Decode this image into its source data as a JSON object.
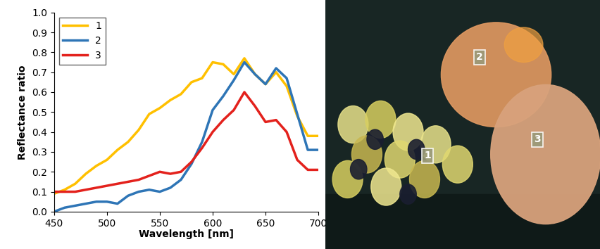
{
  "chart_data": {
    "type": "line",
    "x_label": "Wavelength [nm]",
    "y_label": "Reflectance ratio",
    "x": [
      450,
      460,
      470,
      480,
      490,
      500,
      510,
      520,
      530,
      540,
      550,
      560,
      570,
      580,
      590,
      600,
      610,
      620,
      630,
      640,
      650,
      660,
      670,
      680,
      690,
      700
    ],
    "series": [
      {
        "name": "1",
        "color": "#ffc000",
        "values": [
          0.09,
          0.11,
          0.14,
          0.19,
          0.23,
          0.26,
          0.31,
          0.35,
          0.41,
          0.49,
          0.52,
          0.56,
          0.59,
          0.65,
          0.67,
          0.75,
          0.74,
          0.69,
          0.77,
          0.69,
          0.64,
          0.7,
          0.63,
          0.48,
          0.38,
          0.38
        ]
      },
      {
        "name": "2",
        "color": "#2e75b6",
        "values": [
          0.0,
          0.02,
          0.03,
          0.04,
          0.05,
          0.05,
          0.04,
          0.08,
          0.1,
          0.11,
          0.1,
          0.12,
          0.16,
          0.24,
          0.35,
          0.51,
          0.58,
          0.66,
          0.75,
          0.69,
          0.64,
          0.72,
          0.67,
          0.49,
          0.31,
          0.31
        ]
      },
      {
        "name": "3",
        "color": "#e3211c",
        "values": [
          0.1,
          0.1,
          0.1,
          0.11,
          0.12,
          0.13,
          0.14,
          0.15,
          0.16,
          0.18,
          0.2,
          0.19,
          0.2,
          0.25,
          0.32,
          0.4,
          0.46,
          0.51,
          0.6,
          0.53,
          0.45,
          0.46,
          0.4,
          0.26,
          0.21,
          0.21
        ]
      }
    ],
    "xlim": [
      450,
      700
    ],
    "xticks": [
      450,
      500,
      550,
      600,
      650,
      700
    ],
    "ylim": [
      0.0,
      1.0
    ],
    "yticks": [
      0.0,
      0.1,
      0.2,
      0.3,
      0.4,
      0.5,
      0.6,
      0.7,
      0.8,
      0.9,
      1.0
    ],
    "grid": false,
    "legend": "upper left"
  },
  "image": {
    "markers": [
      "1",
      "2",
      "3"
    ]
  }
}
